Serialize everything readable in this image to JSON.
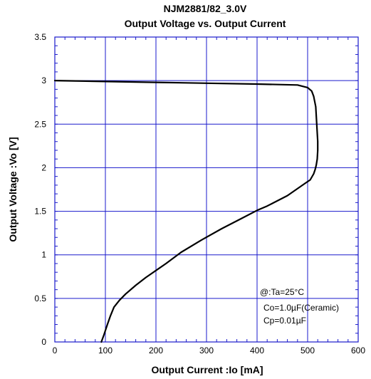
{
  "chart_data": {
    "type": "line",
    "title": "NJM2881/82_3.0V",
    "subtitle": "Output Voltage vs. Output Current",
    "xlabel": "Output Current :Io [mA]",
    "ylabel": "Output Voltage :Vo [V]",
    "xlim": [
      0,
      600
    ],
    "ylim": [
      0,
      3.5
    ],
    "x_ticks": [
      0,
      100,
      200,
      300,
      400,
      500,
      600
    ],
    "y_ticks": [
      0,
      0.5,
      1,
      1.5,
      2,
      2.5,
      3,
      3.5
    ],
    "x_tick_labels": [
      "0",
      "100",
      "200",
      "300",
      "400",
      "500",
      "600"
    ],
    "y_tick_labels": [
      "0",
      "0.5",
      "1",
      "1.5",
      "2",
      "2.5",
      "3",
      "3.5"
    ],
    "grid": true,
    "legend": "none",
    "series": [
      {
        "x": [
          0,
          100,
          200,
          300,
          400,
          480,
          500,
          508,
          512,
          516,
          518,
          520,
          520,
          519,
          517,
          515,
          512,
          505,
          495,
          460,
          420,
          400,
          370,
          330,
          290,
          250,
          220,
          200,
          180,
          160,
          140,
          128,
          117,
          110,
          104,
          97,
          92
        ],
        "y": [
          3.0,
          2.99,
          2.98,
          2.97,
          2.96,
          2.95,
          2.92,
          2.88,
          2.82,
          2.7,
          2.5,
          2.3,
          2.2,
          2.1,
          2.03,
          1.98,
          1.93,
          1.86,
          1.82,
          1.68,
          1.56,
          1.51,
          1.42,
          1.3,
          1.17,
          1.03,
          0.9,
          0.82,
          0.74,
          0.65,
          0.55,
          0.48,
          0.4,
          0.3,
          0.2,
          0.08,
          0.0
        ],
        "color": "#000000"
      }
    ],
    "annotations": [
      "@:Ta=25°C",
      "Co=1.0µF(Ceramic)",
      "Cp=0.01µF"
    ]
  }
}
